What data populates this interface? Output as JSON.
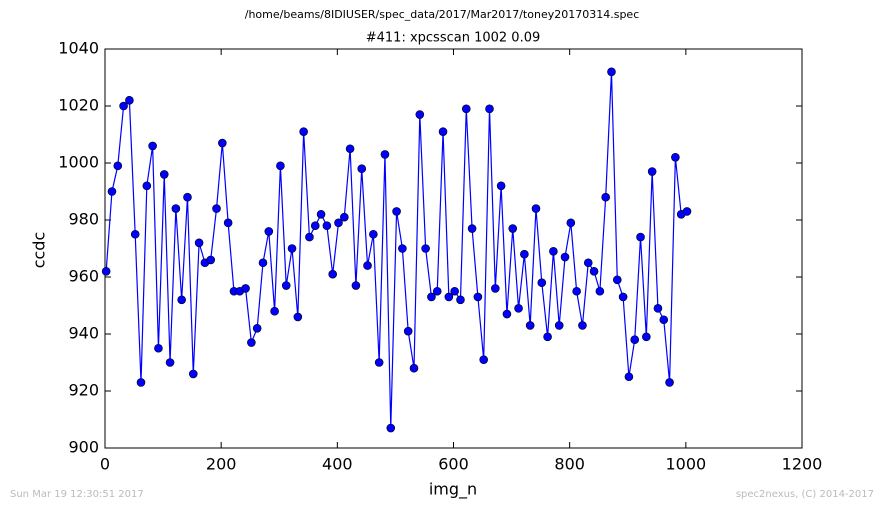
{
  "chart_data": {
    "type": "line",
    "suptitle": "/home/beams/8IDIUSER/spec_data/2017/Mar2017/toney20170314.spec",
    "title": "#411: xpcsscan 1002 0.09",
    "xlabel": "img_n",
    "ylabel": "ccdc",
    "footer_left": "Sun Mar 19 12:30:51 2017",
    "footer_right": "spec2nexus, (C) 2014-2017",
    "xlim": [
      0,
      1200
    ],
    "xticks": [
      0,
      200,
      400,
      600,
      800,
      1000,
      1200
    ],
    "ylim": [
      900,
      1040
    ],
    "yticks": [
      900,
      920,
      940,
      960,
      980,
      1000,
      1020,
      1040
    ],
    "grid": false,
    "x": [
      2,
      12,
      22,
      32,
      42,
      52,
      62,
      72,
      82,
      92,
      102,
      112,
      122,
      132,
      142,
      152,
      162,
      172,
      182,
      192,
      202,
      212,
      222,
      232,
      242,
      252,
      262,
      272,
      282,
      292,
      302,
      312,
      322,
      332,
      342,
      352,
      362,
      372,
      382,
      392,
      402,
      412,
      422,
      432,
      442,
      452,
      462,
      472,
      482,
      492,
      502,
      512,
      522,
      532,
      542,
      552,
      562,
      572,
      582,
      592,
      602,
      612,
      622,
      632,
      642,
      652,
      662,
      672,
      682,
      692,
      702,
      712,
      722,
      732,
      742,
      752,
      762,
      772,
      782,
      792,
      802,
      812,
      822,
      832,
      842,
      852,
      862,
      872,
      882,
      892,
      902,
      912,
      922,
      932,
      942,
      952,
      962,
      972,
      982,
      992,
      1002
    ],
    "series": [
      {
        "name": "ccdc",
        "color": "#0000ff",
        "values": [
          962,
          990,
          999,
          1020,
          1022,
          975,
          923,
          992,
          1006,
          935,
          996,
          930,
          984,
          952,
          988,
          926,
          972,
          965,
          966,
          984,
          1007,
          979,
          955,
          955,
          956,
          937,
          942,
          965,
          976,
          948,
          999,
          957,
          970,
          946,
          1011,
          974,
          978,
          982,
          978,
          961,
          979,
          981,
          1005,
          957,
          998,
          964,
          975,
          930,
          1003,
          907,
          983,
          970,
          941,
          928,
          1017,
          970,
          953,
          955,
          1011,
          953,
          955,
          952,
          1019,
          977,
          953,
          931,
          1019,
          956,
          992,
          947,
          977,
          949,
          968,
          943,
          984,
          958,
          939,
          969,
          943,
          967,
          979,
          955,
          943,
          965,
          962,
          955,
          988,
          1032,
          959,
          953,
          925,
          938,
          974,
          939,
          997,
          949,
          945,
          923,
          1002,
          982,
          983
        ]
      }
    ]
  }
}
